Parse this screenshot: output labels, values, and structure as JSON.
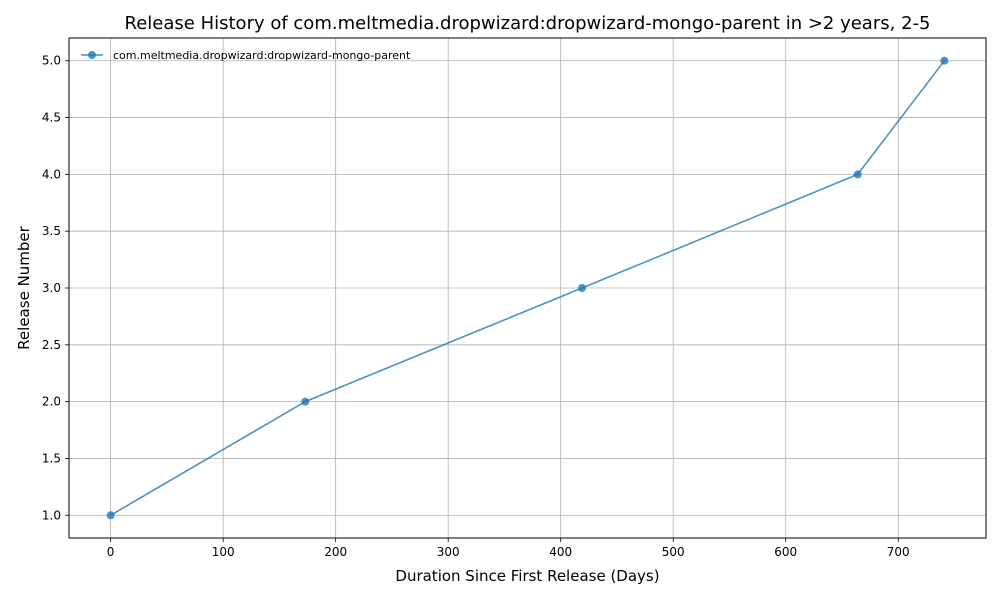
{
  "chart_data": {
    "type": "line",
    "title": "Release History of com.meltmedia.dropwizard:dropwizard-mongo-parent in >2 years, 2-5",
    "xlabel": "Duration Since First Release (Days)",
    "ylabel": "Release Number",
    "xlim": [
      -37,
      778
    ],
    "ylim": [
      0.8,
      5.2
    ],
    "xticks": [
      0,
      100,
      200,
      300,
      400,
      500,
      600,
      700
    ],
    "yticks": [
      1.0,
      1.5,
      2.0,
      2.5,
      3.0,
      3.5,
      4.0,
      4.5,
      5.0
    ],
    "xtick_labels": [
      "0",
      "100",
      "200",
      "300",
      "400",
      "500",
      "600",
      "700"
    ],
    "ytick_labels": [
      "1.0",
      "1.5",
      "2.0",
      "2.5",
      "3.0",
      "3.5",
      "4.0",
      "4.5",
      "5.0"
    ],
    "grid": true,
    "legend_position": "upper left",
    "series": [
      {
        "name": "com.meltmedia.dropwizard:dropwizard-mongo-parent",
        "color": "#1f77b4",
        "x": [
          0,
          173,
          419,
          664,
          741
        ],
        "y": [
          1,
          2,
          3,
          4,
          5
        ]
      }
    ]
  }
}
